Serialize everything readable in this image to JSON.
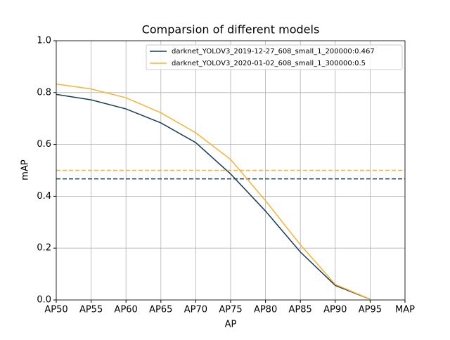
{
  "chart_data": {
    "type": "line",
    "title": "Comparsion of different models",
    "x_label": "AP",
    "y_label": "mAP",
    "categories": [
      "AP50",
      "AP55",
      "AP60",
      "AP65",
      "AP70",
      "AP75",
      "AP80",
      "AP85",
      "AP90",
      "AP95",
      "MAP"
    ],
    "series": [
      {
        "name": "darknet_YOLOV3_2019-12-27_608_small_1_200000:0.467",
        "color": "#173a5a",
        "values": [
          0.793,
          0.772,
          0.737,
          0.683,
          0.607,
          0.486,
          0.343,
          0.185,
          0.056,
          0.003,
          null
        ],
        "map": 0.467
      },
      {
        "name": "darknet_YOLOV3_2020-01-02_608_small_1_300000:0.5",
        "color": "#f9b233",
        "values": [
          0.833,
          0.814,
          0.78,
          0.722,
          0.645,
          0.542,
          0.383,
          0.213,
          0.06,
          0.003,
          null
        ],
        "map": 0.5
      }
    ],
    "ylim": [
      0,
      1
    ],
    "yticks": [
      {
        "value": 0,
        "label": "0.0"
      },
      0.2,
      0.4,
      0.6,
      0.8,
      {
        "value": 1,
        "label": "1.0"
      }
    ],
    "grid": true,
    "legend": "upper right"
  }
}
